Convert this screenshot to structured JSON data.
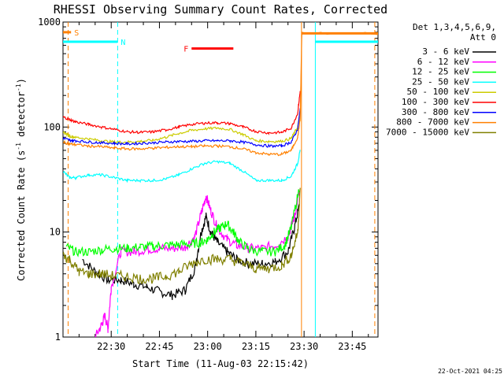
{
  "chart_data": {
    "type": "line",
    "title": "RHESSI Observing Summary Count Rates, Corrected",
    "xlabel": "Start Time (11-Aug-03 22:15:42)",
    "ylabel": "Corrected Count Rate (s⁻¹ detector⁻¹)",
    "ylabel_parts": {
      "main": "Corrected Count Rate (s",
      "sup1": "-1",
      "mid": " detector",
      "sup2": "-1",
      "end": ")"
    },
    "y_scale": "log",
    "ylim": [
      1,
      1000
    ],
    "xlim_minutes_after_2215": [
      0,
      98
    ],
    "x_ticks": [
      {
        "label": "22:30",
        "minute": 15
      },
      {
        "label": "22:45",
        "minute": 30
      },
      {
        "label": "23:00",
        "minute": 45
      },
      {
        "label": "23:15",
        "minute": 60
      },
      {
        "label": "23:30",
        "minute": 75
      },
      {
        "label": "23:45",
        "minute": 90
      }
    ],
    "y_ticks": [
      {
        "label": "1",
        "value": 1
      },
      {
        "label": "10",
        "value": 10
      },
      {
        "label": "100",
        "value": 100
      },
      {
        "label": "1000",
        "value": 1000
      }
    ],
    "legend_header": [
      "Det 1,3,4,5,6,9,",
      "Att 0"
    ],
    "legend_position": "right",
    "series": [
      {
        "name": "3 - 6 keV",
        "color": "#000000",
        "x": [
          0,
          3,
          6,
          10,
          14,
          18,
          22,
          26,
          30,
          34,
          38,
          41,
          43,
          44.5,
          46,
          48,
          51,
          54,
          58,
          62,
          66,
          70,
          72,
          73.5
        ],
        "y": [
          null,
          null,
          5.5,
          4.2,
          3.5,
          3.5,
          3.2,
          3.0,
          2.7,
          2.5,
          2.8,
          4.5,
          10,
          14,
          10,
          8,
          6.5,
          5.5,
          5,
          5,
          5.2,
          6.5,
          11,
          18
        ]
      },
      {
        "name": "6 - 12 keV",
        "color": "#ff00ff",
        "x": [
          10,
          12,
          13,
          14,
          15,
          18,
          22,
          26,
          30,
          34,
          38,
          41,
          43,
          44.5,
          46,
          48,
          51,
          54,
          58,
          62,
          66,
          70,
          72,
          73.5
        ],
        "y": [
          1,
          1.3,
          1.6,
          1.2,
          3,
          6.5,
          6.5,
          6.8,
          7,
          7,
          7.2,
          9,
          15,
          22,
          16,
          11,
          8.5,
          7.5,
          7,
          7,
          7.5,
          9,
          14,
          24
        ]
      },
      {
        "name": "12 - 25 keV",
        "color": "#00ff00",
        "x": [
          1,
          4,
          8,
          12,
          16,
          20,
          24,
          28,
          32,
          36,
          40,
          43,
          45,
          47,
          49,
          51,
          53,
          55,
          58,
          62,
          66,
          69,
          71,
          73.5
        ],
        "y": [
          7.2,
          6.5,
          6.5,
          6.8,
          7,
          7,
          7.2,
          7.3,
          7.5,
          7.6,
          7.7,
          8,
          8.5,
          10,
          11,
          12,
          10,
          8,
          6.8,
          6.5,
          6.5,
          7.5,
          11,
          26
        ]
      },
      {
        "name": "25 - 50 keV",
        "color": "#00ffff",
        "x": [
          0,
          2,
          4,
          8,
          12,
          16,
          20,
          24,
          28,
          32,
          36,
          40,
          44,
          48,
          52,
          56,
          60,
          64,
          68,
          71,
          73,
          73.8
        ],
        "y": [
          38,
          33,
          33,
          35,
          35,
          33,
          31,
          31,
          31,
          32,
          35,
          40,
          45,
          47,
          45,
          38,
          31,
          31,
          31,
          34,
          45,
          60
        ]
      },
      {
        "name": "50 - 100 keV",
        "color": "#cccc00",
        "x": [
          0,
          2,
          4,
          8,
          12,
          16,
          20,
          24,
          28,
          32,
          36,
          40,
          44,
          48,
          52,
          56,
          60,
          64,
          68,
          71,
          73,
          73.8
        ],
        "y": [
          90,
          82,
          80,
          77,
          74,
          72,
          72,
          73,
          75,
          80,
          87,
          93,
          96,
          98,
          95,
          85,
          74,
          73,
          73,
          78,
          100,
          140
        ]
      },
      {
        "name": "100 - 300 keV",
        "color": "#ff0000",
        "x": [
          0,
          2,
          4,
          8,
          12,
          16,
          20,
          24,
          28,
          32,
          36,
          40,
          44,
          48,
          52,
          56,
          60,
          64,
          68,
          71,
          73,
          73.8
        ],
        "y": [
          125,
          118,
          112,
          106,
          100,
          95,
          90,
          89,
          90,
          94,
          100,
          106,
          109,
          110,
          108,
          100,
          91,
          88,
          89,
          98,
          135,
          220
        ]
      },
      {
        "name": "300 - 800 keV",
        "color": "#0000ff",
        "x": [
          0,
          2,
          4,
          8,
          12,
          16,
          20,
          24,
          28,
          32,
          36,
          40,
          44,
          48,
          52,
          56,
          60,
          64,
          68,
          71,
          73,
          73.8
        ],
        "y": [
          78,
          75,
          74,
          72,
          71,
          70,
          69,
          70,
          71,
          72,
          73,
          73,
          74,
          74,
          74,
          72,
          68,
          66,
          66,
          72,
          95,
          150
        ]
      },
      {
        "name": "800 - 7000 keV",
        "color": "#ff8000",
        "x": [
          0,
          2,
          4,
          8,
          12,
          16,
          20,
          24,
          28,
          32,
          36,
          40,
          44,
          48,
          52,
          56,
          60,
          64,
          68,
          71,
          73,
          73.8,
          74.3,
          98
        ],
        "y": [
          72,
          69,
          68,
          66,
          65,
          63,
          62,
          62,
          63,
          64,
          65,
          65,
          66,
          66,
          65,
          62,
          57,
          55,
          55,
          60,
          80,
          120,
          780,
          780
        ]
      },
      {
        "name": "7000 - 15000 keV",
        "color": "#808000",
        "x": [
          0,
          2,
          5,
          8,
          12,
          16,
          20,
          24,
          28,
          32,
          36,
          40,
          44,
          48,
          52,
          56,
          60,
          64,
          68,
          71,
          73,
          73.8
        ],
        "y": [
          6,
          5.5,
          4.2,
          4,
          4,
          3.8,
          3.8,
          3.6,
          3.6,
          3.8,
          4.2,
          5,
          5.5,
          5.5,
          5.5,
          5,
          4.5,
          4.5,
          4.8,
          6,
          10,
          25
        ]
      }
    ],
    "flags": [
      {
        "label": "S",
        "color": "#ff8000",
        "start_minute": 0,
        "end_minute": 2.5,
        "level": 800
      },
      {
        "label": "N",
        "color": "#00ffff",
        "start_minute": 0,
        "end_minute": 17,
        "level": 650
      },
      {
        "label": "F",
        "color": "#ff0000",
        "start_minute": 40,
        "end_minute": 53,
        "level": 560
      },
      {
        "label": "",
        "color": "#ff8000",
        "start_minute": 74.3,
        "end_minute": 98,
        "level": 780
      },
      {
        "label": "",
        "color": "#00ffff",
        "start_minute": 78.5,
        "end_minute": 98,
        "level": 650
      }
    ],
    "vertical_markers": [
      {
        "minute": 1.6,
        "color": "#ff8000",
        "style": "dashed"
      },
      {
        "minute": 17,
        "color": "#00ffff",
        "style": "dashed"
      },
      {
        "minute": 74.2,
        "color": "#ff8000",
        "style": "solid"
      },
      {
        "minute": 78.5,
        "color": "#00ffff",
        "style": "solid"
      },
      {
        "minute": 97,
        "color": "#ff8000",
        "style": "dashed"
      }
    ],
    "grid": false
  },
  "footer_date": "22-Oct-2021 04:25"
}
